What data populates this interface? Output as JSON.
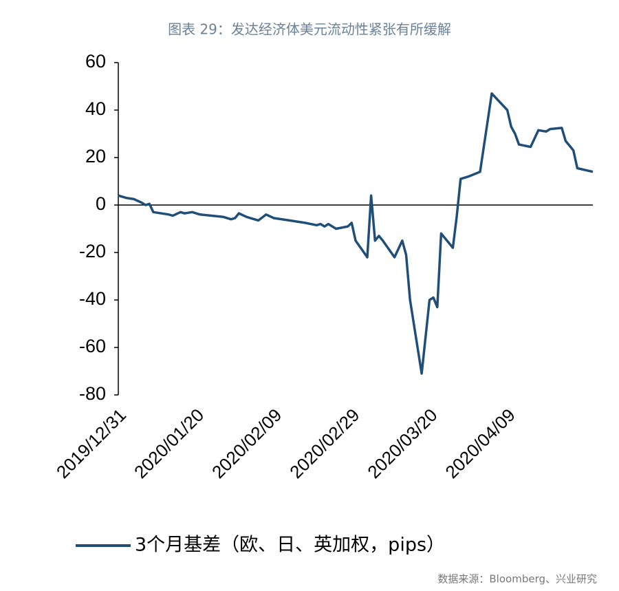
{
  "chart_data": {
    "type": "line",
    "title": "图表 29：发达经济体美元流动性紧张有所缓解",
    "source": "数据来源：Bloomberg、兴业研究",
    "x": [
      "2019/12/31",
      "2020/01/02",
      "2020/01/04",
      "2020/01/06",
      "2020/01/07",
      "2020/01/08",
      "2020/01/09",
      "2020/01/13",
      "2020/01/14",
      "2020/01/16",
      "2020/01/17",
      "2020/01/19",
      "2020/01/21",
      "2020/01/24",
      "2020/01/27",
      "2020/01/29",
      "2020/01/30",
      "2020/01/31",
      "2020/02/02",
      "2020/02/05",
      "2020/02/07",
      "2020/02/09",
      "2020/02/13",
      "2020/02/17",
      "2020/02/20",
      "2020/02/21",
      "2020/02/22",
      "2020/02/23",
      "2020/02/25",
      "2020/02/28",
      "2020/02/29",
      "2020/03/01",
      "2020/03/04",
      "2020/03/05",
      "2020/03/06",
      "2020/03/07",
      "2020/03/08",
      "2020/03/11",
      "2020/03/13",
      "2020/03/14",
      "2020/03/15",
      "2020/03/18",
      "2020/03/20",
      "2020/03/21",
      "2020/03/22",
      "2020/03/23",
      "2020/03/26",
      "2020/03/27",
      "2020/03/28",
      "2020/03/30",
      "2020/04/02",
      "2020/04/05",
      "2020/04/09",
      "2020/04/10",
      "2020/04/11",
      "2020/04/12",
      "2020/04/15",
      "2020/04/17",
      "2020/04/19",
      "2020/04/20",
      "2020/04/23",
      "2020/04/24",
      "2020/04/25",
      "2020/04/26",
      "2020/04/27",
      "2020/05/01"
    ],
    "series": [
      {
        "name": "3个月基差（欧、日、英加权，pips）",
        "color": "#1f4e79",
        "values": [
          4,
          3,
          2.5,
          1,
          0,
          0.5,
          -3,
          -4,
          -4.5,
          -3,
          -3.5,
          -3,
          -4,
          -4.5,
          -5,
          -6,
          -5.5,
          -3.5,
          -5,
          -6.5,
          -4,
          -5.5,
          -6.5,
          -7.5,
          -8.5,
          -8,
          -9,
          -8,
          -10,
          -9,
          -7.5,
          -15,
          -22,
          4,
          -15,
          -13,
          -15,
          -22,
          -15,
          -21,
          -40,
          -71,
          -40,
          -39,
          -43,
          -12,
          -18,
          -5,
          11,
          12,
          14,
          47,
          40,
          33,
          30,
          25.5,
          24.5,
          31.5,
          31,
          32,
          32.5,
          27,
          25,
          23,
          15.5,
          14
        ]
      }
    ],
    "xlim": [
      "2019/12/31",
      "2020/05/01"
    ],
    "xticks": [
      "2019/12/31",
      "2020/01/20",
      "2020/02/09",
      "2020/02/29",
      "2020/03/20",
      "2020/04/09"
    ],
    "ylim": [
      -80,
      60
    ],
    "yticks": [
      -80,
      -60,
      -40,
      -20,
      0,
      20,
      40,
      60
    ],
    "grid": false
  }
}
